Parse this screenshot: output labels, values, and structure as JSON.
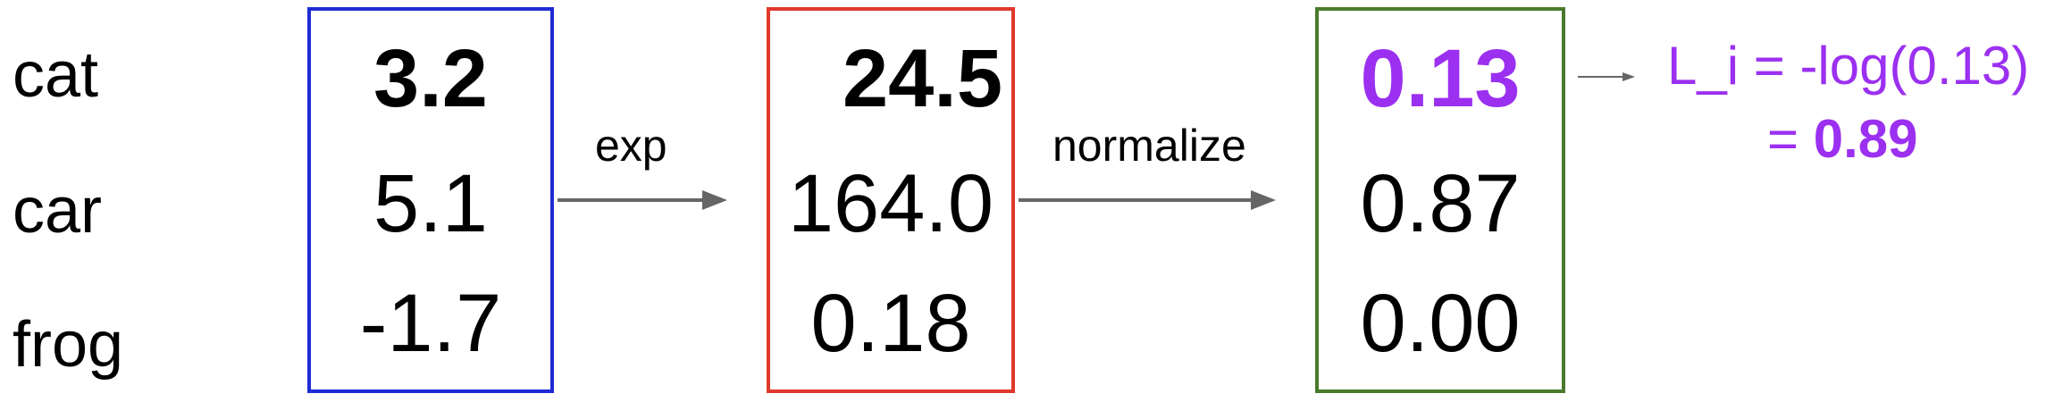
{
  "rows": [
    {
      "class_label": "cat",
      "score": "3.2",
      "exp": "24.5",
      "prob": "0.13"
    },
    {
      "class_label": "car",
      "score": "5.1",
      "exp": "164.0",
      "prob": "0.87"
    },
    {
      "class_label": "frog",
      "score": "-1.7",
      "exp": "0.18",
      "prob": "0.00"
    }
  ],
  "arrows": {
    "exp_label": "exp",
    "normalize_label": "normalize"
  },
  "loss": {
    "line1": "L_i = -log(0.13)",
    "line2_prefix": "= ",
    "line2_value": "0.89"
  },
  "colors": {
    "scores_box": "#1f2bd4",
    "exp_box": "#e0382b",
    "prob_box": "#4a7a2c",
    "highlight": "#9b30f0",
    "arrow": "#666666",
    "text": "#000000"
  }
}
